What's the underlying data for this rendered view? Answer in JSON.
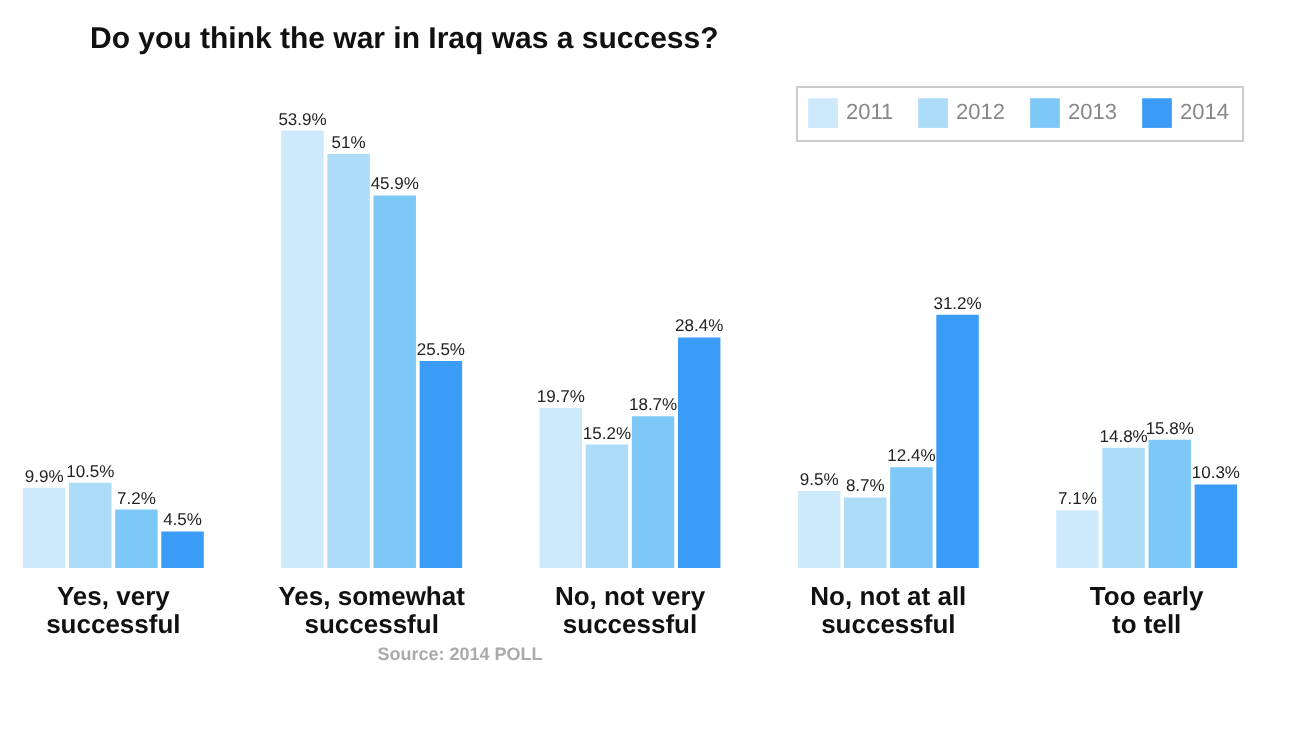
{
  "chart_data": {
    "type": "bar",
    "title": "Do you think the war in Iraq was a success?",
    "categories": [
      "Yes, very\nsuccessful",
      "Yes, somewhat\nsuccessful",
      "No, not very\nsuccessful",
      "No, not at all\nsuccessful",
      "Too early\nto tell"
    ],
    "series": [
      {
        "name": "2011",
        "color": "#cde9fb",
        "values": [
          9.9,
          53.9,
          19.7,
          9.5,
          7.1
        ],
        "value_labels": [
          "9.9%",
          "53.9%",
          "19.7%",
          "9.5%",
          "7.1%"
        ]
      },
      {
        "name": "2012",
        "color": "#acdcf8",
        "values": [
          10.5,
          51,
          15.2,
          8.7,
          14.8
        ],
        "value_labels": [
          "10.5%",
          "51%",
          "15.2%",
          "8.7%",
          "14.8%"
        ]
      },
      {
        "name": "2013",
        "color": "#7dc8f7",
        "values": [
          7.2,
          45.9,
          18.7,
          12.4,
          15.8
        ],
        "value_labels": [
          "7.2%",
          "45.9%",
          "18.7%",
          "12.4%",
          "15.8%"
        ]
      },
      {
        "name": "2014",
        "color": "#3a9cf7",
        "values": [
          4.5,
          25.5,
          28.4,
          31.2,
          10.3
        ],
        "value_labels": [
          "4.5%",
          "25.5%",
          "28.4%",
          "31.2%",
          "10.3%"
        ]
      }
    ],
    "legend": "top right",
    "grid": false,
    "annotations": [
      "Source: 2014 POLL"
    ]
  }
}
